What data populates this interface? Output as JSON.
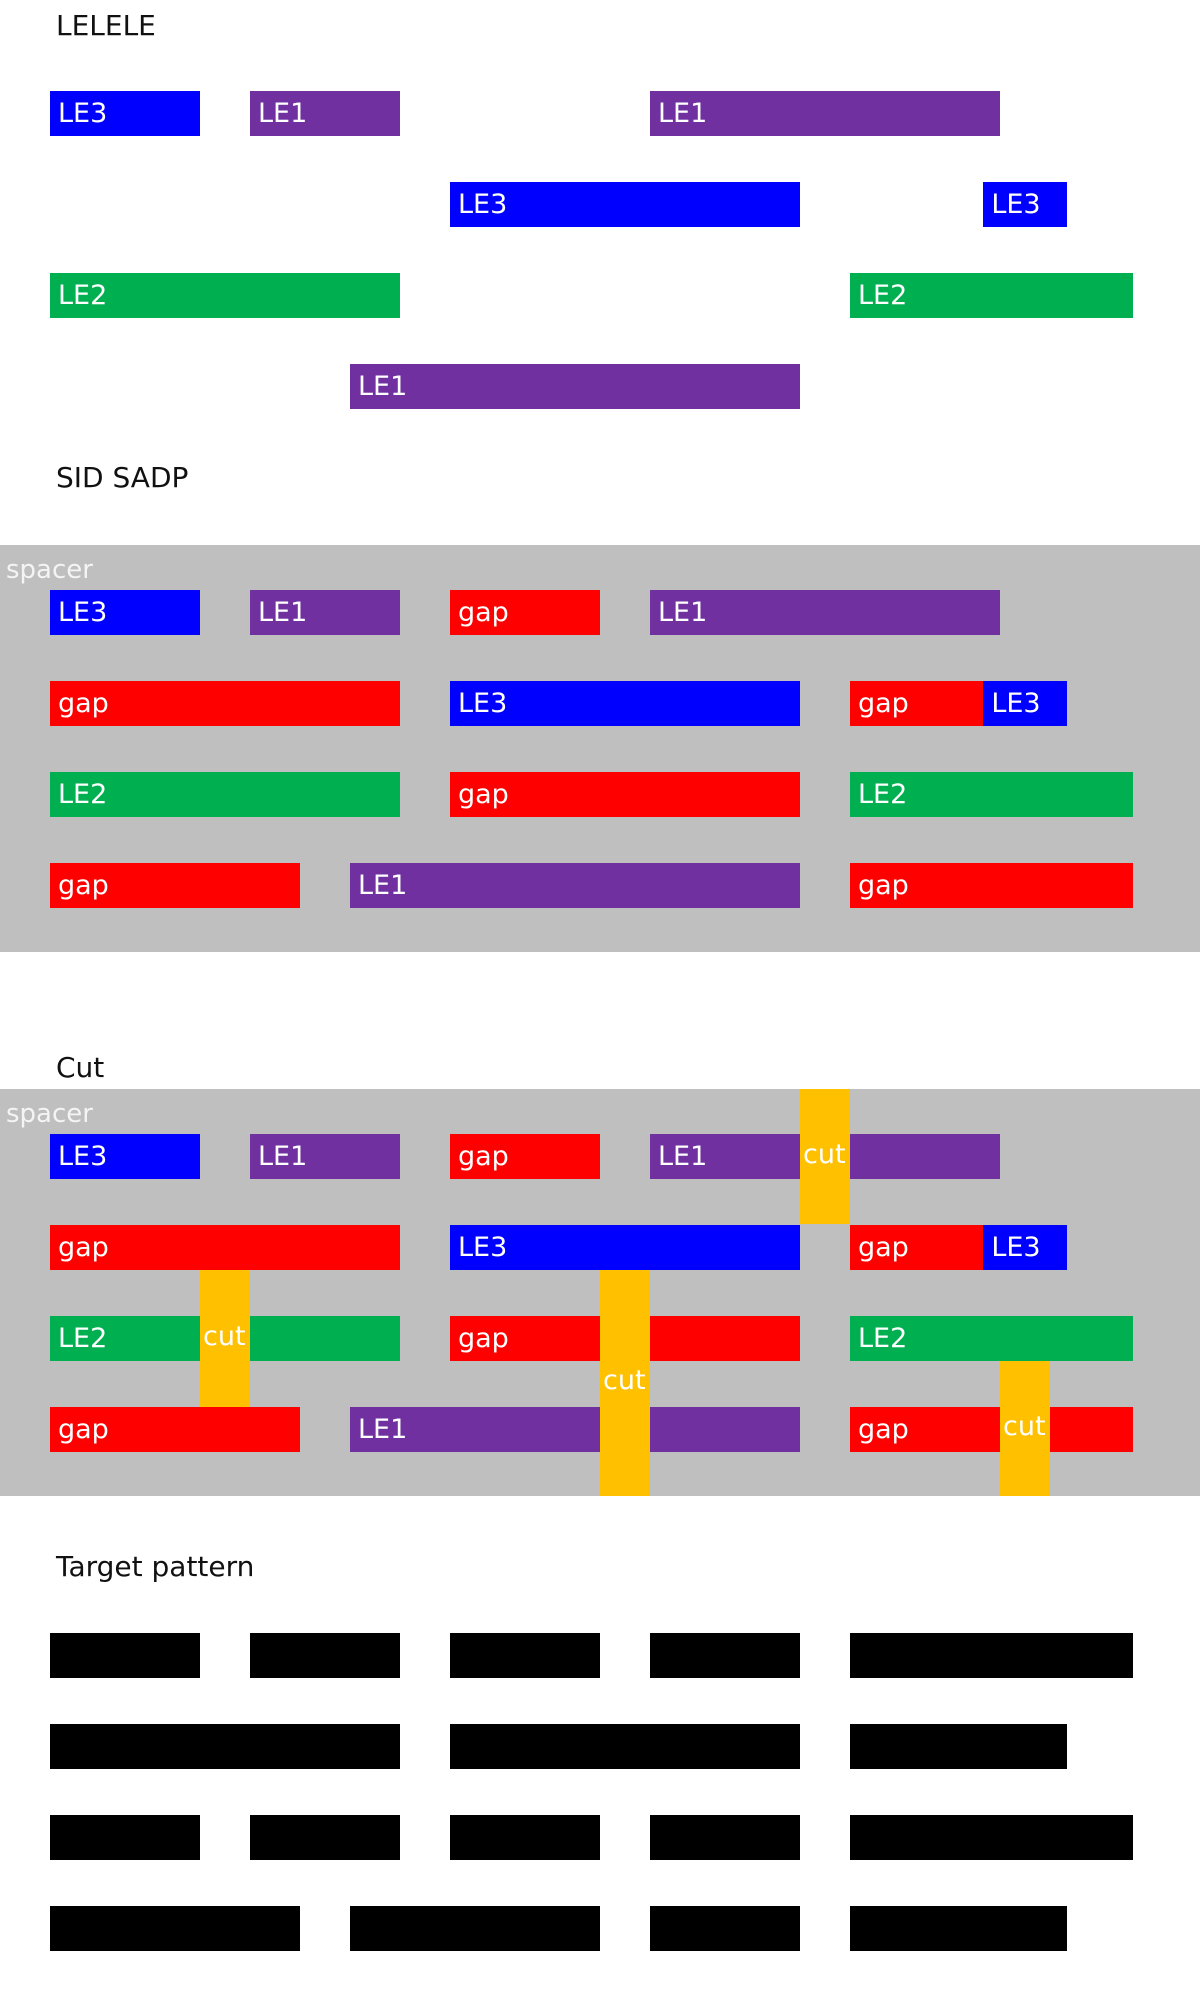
{
  "colors": {
    "LE1": "#7030a0",
    "LE2": "#00b050",
    "LE3": "#0000ff",
    "gap": "#ff0000",
    "cut": "#ffc000",
    "spacer": "#bfbfbf",
    "target": "#000000"
  },
  "sections": {
    "lelele": {
      "title": "LELELE",
      "rows": [
        [
          {
            "layer": "LE3",
            "label": "LE3",
            "col": 0,
            "span": 1
          },
          {
            "layer": "LE1",
            "label": "LE1",
            "col": 1,
            "span": 1
          },
          {
            "layer": "LE1",
            "label": "LE1",
            "col": 3,
            "span": 2
          }
        ],
        [
          {
            "layer": "LE3",
            "label": "LE3",
            "col": 2,
            "span": 2
          },
          {
            "layer": "LE3",
            "label": "LE3",
            "col": 4.6667,
            "span": 0.6667
          }
        ],
        [
          {
            "layer": "LE2",
            "label": "LE2",
            "col": 0,
            "span": 2
          },
          {
            "layer": "LE2",
            "label": "LE2",
            "col": 4,
            "span": 1.6667
          }
        ],
        [
          {
            "layer": "LE1",
            "label": "LE1",
            "col": 1.5,
            "span": 2.5
          }
        ]
      ]
    },
    "sid": {
      "title": "SID SADP",
      "spacer_label": "spacer",
      "rows": [
        [
          {
            "layer": "LE3",
            "label": "LE3",
            "col": 0,
            "span": 1
          },
          {
            "layer": "LE1",
            "label": "LE1",
            "col": 1,
            "span": 1
          },
          {
            "layer": "gap",
            "label": "gap",
            "col": 2,
            "span": 1
          },
          {
            "layer": "LE1",
            "label": "LE1",
            "col": 3,
            "span": 2
          }
        ],
        [
          {
            "layer": "gap",
            "label": "gap",
            "col": 0,
            "span": 2
          },
          {
            "layer": "LE3",
            "label": "LE3",
            "col": 2,
            "span": 2
          },
          {
            "layer": "gap",
            "label": "gap",
            "col": 4,
            "span": 1
          },
          {
            "layer": "LE3",
            "label": "LE3",
            "col": 4.6667,
            "span": 0.6667
          }
        ],
        [
          {
            "layer": "LE2",
            "label": "LE2",
            "col": 0,
            "span": 2
          },
          {
            "layer": "gap",
            "label": "gap",
            "col": 2,
            "span": 2
          },
          {
            "layer": "LE2",
            "label": "LE2",
            "col": 4,
            "span": 1.6667
          }
        ],
        [
          {
            "layer": "gap",
            "label": "gap",
            "col": 0,
            "span": 1.5
          },
          {
            "layer": "LE1",
            "label": "LE1",
            "col": 1.5,
            "span": 2.5
          },
          {
            "layer": "gap",
            "label": "gap",
            "col": 4,
            "span": 1.6667
          }
        ]
      ]
    },
    "cut": {
      "title": "Cut",
      "spacer_label": "spacer",
      "rows": [
        [
          {
            "layer": "LE3",
            "label": "LE3",
            "col": 0,
            "span": 1
          },
          {
            "layer": "LE1",
            "label": "LE1",
            "col": 1,
            "span": 1
          },
          {
            "layer": "gap",
            "label": "gap",
            "col": 2,
            "span": 1
          },
          {
            "layer": "LE1",
            "label": "LE1",
            "col": 3,
            "span": 2
          }
        ],
        [
          {
            "layer": "gap",
            "label": "gap",
            "col": 0,
            "span": 2
          },
          {
            "layer": "LE3",
            "label": "LE3",
            "col": 2,
            "span": 2
          },
          {
            "layer": "gap",
            "label": "gap",
            "col": 4,
            "span": 1
          },
          {
            "layer": "LE3",
            "label": "LE3",
            "col": 4.6667,
            "span": 0.6667
          }
        ],
        [
          {
            "layer": "LE2",
            "label": "LE2",
            "col": 0,
            "span": 2
          },
          {
            "layer": "gap",
            "label": "gap",
            "col": 2,
            "span": 2
          },
          {
            "layer": "LE2",
            "label": "LE2",
            "col": 4,
            "span": 1.6667
          }
        ],
        [
          {
            "layer": "gap",
            "label": "gap",
            "col": 0,
            "span": 1.5
          },
          {
            "layer": "LE1",
            "label": "LE1",
            "col": 1.5,
            "span": 2.5
          },
          {
            "layer": "gap",
            "label": "gap",
            "col": 4,
            "span": 1.6667
          }
        ]
      ],
      "cuts": [
        {
          "label": "cut",
          "col": 4,
          "row_from": 0,
          "row_to": 0
        },
        {
          "label": "cut",
          "col": 1,
          "row_from": 1,
          "row_to": 2
        },
        {
          "label": "cut",
          "col": 3,
          "row_from": 1,
          "row_to": 3
        },
        {
          "label": "cut",
          "col": 5,
          "row_from": 2,
          "row_to": 3
        }
      ]
    },
    "target": {
      "title": "Target pattern",
      "rows": [
        [
          {
            "col": 0,
            "span": 1
          },
          {
            "col": 1,
            "span": 1
          },
          {
            "col": 2,
            "span": 1
          },
          {
            "col": 3,
            "span": 1
          },
          {
            "col": 4,
            "span": 1.6667
          }
        ],
        [
          {
            "col": 0,
            "span": 2
          },
          {
            "col": 2,
            "span": 2
          },
          {
            "col": 4,
            "span": 1
          },
          {
            "col": 4.6667,
            "span": 0.6667
          }
        ],
        [
          {
            "col": 0,
            "span": 1
          },
          {
            "col": 1,
            "span": 1
          },
          {
            "col": 2,
            "span": 1
          },
          {
            "col": 3,
            "span": 1
          },
          {
            "col": 4,
            "span": 1.6667
          }
        ],
        [
          {
            "col": 0,
            "span": 1.5
          },
          {
            "col": 1.5,
            "span": 1.5
          },
          {
            "col": 3,
            "span": 1
          },
          {
            "col": 4,
            "span": 1
          },
          {
            "col": 4.6667,
            "span": 0.6667
          }
        ]
      ]
    }
  }
}
